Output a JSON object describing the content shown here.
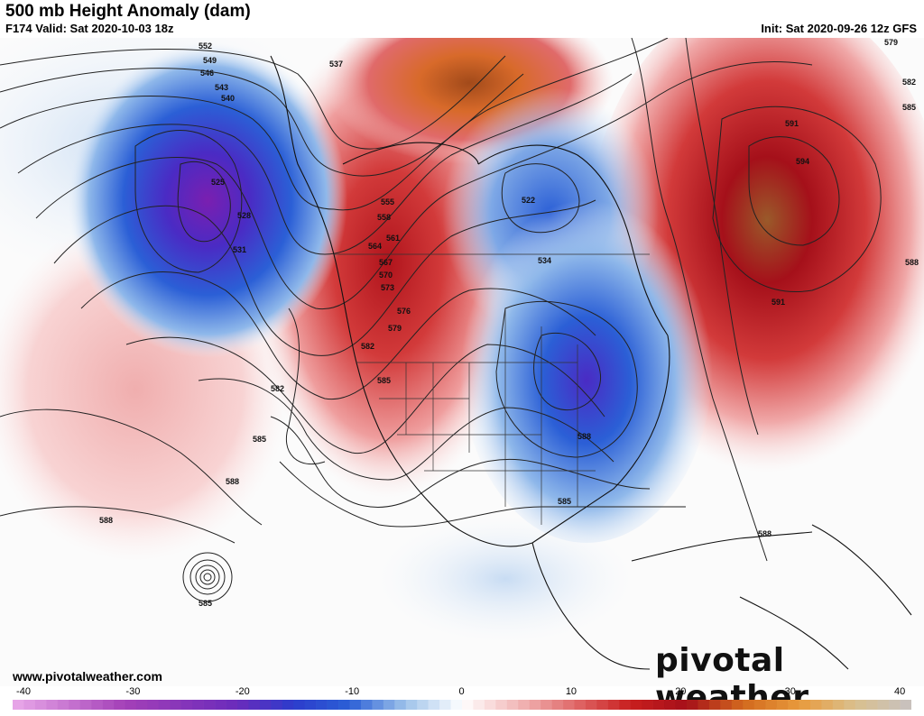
{
  "header": {
    "title": "500 mb Height Anomaly (dam)",
    "valid": "F174 Valid: Sat 2020-10-03 18z",
    "init": "Init: Sat 2020-09-26 12z GFS"
  },
  "footer": {
    "site": "www.pivotalweather.com",
    "brand_prefix": "pivotal",
    "brand_suffix": "weather"
  },
  "colorbar": {
    "min": -40,
    "max": 40,
    "ticks": [
      "-40",
      "-30",
      "-20",
      "-10",
      "0",
      "10",
      "20",
      "30",
      "40"
    ],
    "colors": {
      "neg40": "#e9a9e9",
      "neg30": "#a440b8",
      "neg20": "#6a2bbb",
      "neg15": "#2c3ccc",
      "neg10": "#2b5fd6",
      "neg5": "#9fc3ea",
      "zero": "#ffffff",
      "pos5": "#f2b8b8",
      "pos10": "#e06a6a",
      "pos15": "#c81e1e",
      "pos20": "#a5101a",
      "pos25": "#d2691e",
      "pos30": "#e89a3c",
      "pos35": "#d9c08e",
      "pos40": "#c7c1c1"
    }
  },
  "contour_labels": [
    "552",
    "549",
    "546",
    "543",
    "540",
    "537",
    "534",
    "531",
    "528",
    "525",
    "522",
    "555",
    "558",
    "561",
    "564",
    "567",
    "570",
    "573",
    "576",
    "579",
    "582",
    "585",
    "588",
    "591",
    "594",
    "579"
  ]
}
